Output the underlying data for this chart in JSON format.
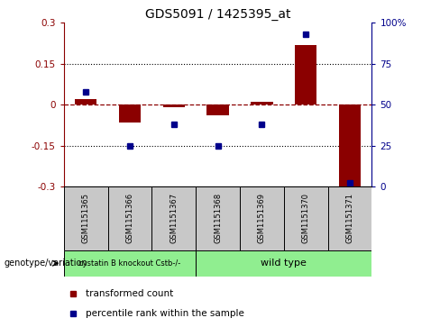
{
  "title": "GDS5091 / 1425395_at",
  "samples": [
    "GSM1151365",
    "GSM1151366",
    "GSM1151367",
    "GSM1151368",
    "GSM1151369",
    "GSM1151370",
    "GSM1151371"
  ],
  "red_values": [
    0.02,
    -0.065,
    -0.01,
    -0.04,
    0.01,
    0.22,
    -0.3
  ],
  "blue_percentile": [
    58,
    25,
    38,
    25,
    38,
    93,
    2
  ],
  "ylim_left": [
    -0.3,
    0.3
  ],
  "ylim_right": [
    0,
    100
  ],
  "yticks_left": [
    -0.3,
    -0.15,
    0,
    0.15,
    0.3
  ],
  "yticks_right": [
    0,
    25,
    50,
    75,
    100
  ],
  "ytick_labels_left": [
    "-0.3",
    "-0.15",
    "0",
    "0.15",
    "0.3"
  ],
  "ytick_labels_right": [
    "0",
    "25",
    "50",
    "75",
    "100%"
  ],
  "hlines": [
    0.15,
    0.0,
    -0.15
  ],
  "hline_styles": [
    "dotted",
    "dashed_red",
    "dotted"
  ],
  "group1_indices": [
    0,
    1,
    2
  ],
  "group2_indices": [
    3,
    4,
    5,
    6
  ],
  "group1_label": "cystatin B knockout Cstb-/-",
  "group2_label": "wild type",
  "green_color": "#90ee90",
  "gray_color": "#c8c8c8",
  "bar_color": "#8b0000",
  "dot_color": "#00008b",
  "legend_red_label": "transformed count",
  "legend_blue_label": "percentile rank within the sample",
  "genotype_label": "genotype/variation"
}
